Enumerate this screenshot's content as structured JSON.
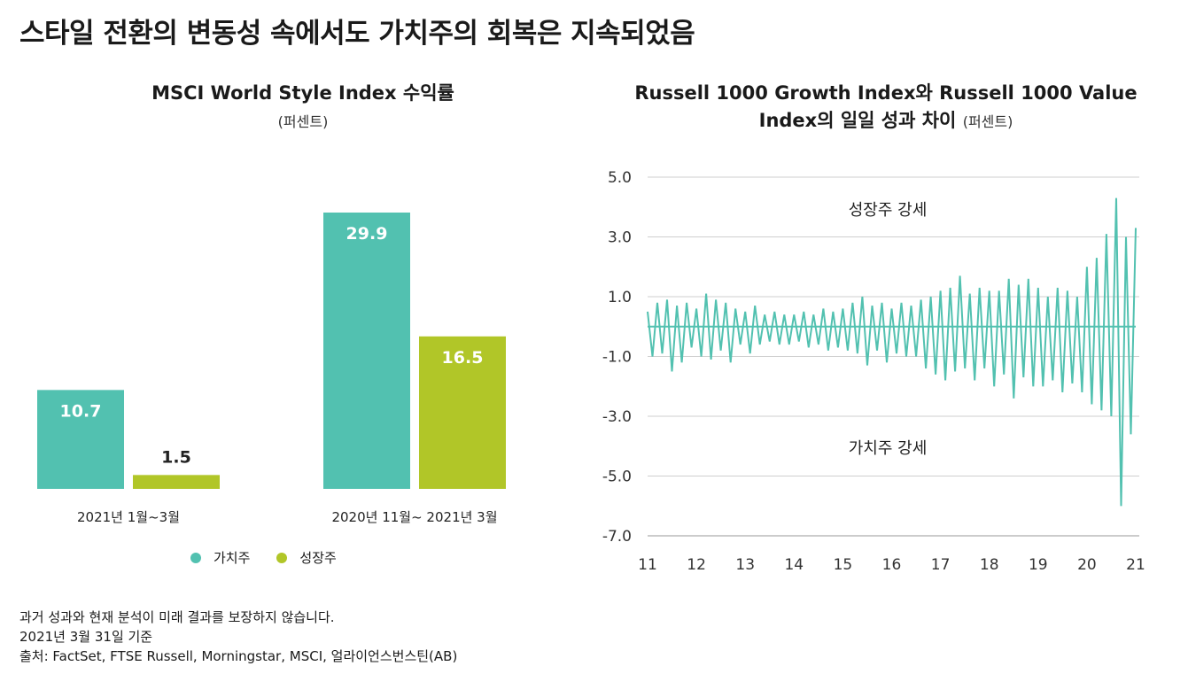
{
  "title": "스타일 전환의 변동성 속에서도 가치주의 회복은 지속되었음",
  "left_chart": {
    "title": "MSCI World Style Index 수익률",
    "unit": "(퍼센트)"
  },
  "right_chart": {
    "title_line1": "Russell 1000 Growth Index와 Russell 1000 Value",
    "title_line2": "Index의 일일 성과 차이",
    "unit": "(퍼센트)",
    "annotation_top": "성장주 강세",
    "annotation_bottom": "가치주 강세"
  },
  "legend": [
    {
      "label": "가치주",
      "color": "#52c1b0"
    },
    {
      "label": "성장주",
      "color": "#b1c628"
    }
  ],
  "footer": {
    "line1": "과거 성과와 현재 분석이 미래 결과를 보장하지 않습니다.",
    "line2": "2021년 3월 31일 기준",
    "line3": "출처: FactSet, FTSE Russell, Morningstar, MSCI, 얼라이언스번스틴(AB)"
  },
  "chart_data": [
    {
      "type": "bar",
      "title": "MSCI World Style Index 수익률",
      "categories": [
        "2021년 1월~3월",
        "2020년 11월~ 2021년 3월"
      ],
      "series": [
        {
          "name": "가치주",
          "values": [
            10.7,
            29.9
          ],
          "color": "#52c1b0"
        },
        {
          "name": "성장주",
          "values": [
            1.5,
            16.5
          ],
          "color": "#b1c628"
        }
      ],
      "value_labels": [
        [
          "10.7",
          "1.5"
        ],
        [
          "29.9",
          "16.5"
        ]
      ],
      "ylim": [
        0,
        32
      ],
      "grid": false,
      "legend": "bottom"
    },
    {
      "type": "line",
      "title": "Russell 1000 Growth Index와 Russell 1000 Value Index의 일일 성과 차이",
      "ylabel": "(퍼센트)",
      "ylim": [
        -7.0,
        5.0
      ],
      "yticks": [
        5.0,
        3.0,
        1.0,
        -1.0,
        -3.0,
        -5.0,
        -7.0
      ],
      "ytick_labels": [
        "5.0",
        "3.0",
        "1.0",
        "-1.0",
        "-3.0",
        "-5.0",
        "-7.0"
      ],
      "xlim": [
        11,
        21
      ],
      "xticks": [
        11,
        12,
        13,
        14,
        15,
        16,
        17,
        18,
        19,
        20,
        21
      ],
      "xtick_labels": [
        "11",
        "12",
        "13",
        "14",
        "15",
        "16",
        "17",
        "18",
        "19",
        "20",
        "21"
      ],
      "grid": true,
      "color": "#52c1b0",
      "x": [
        11.0,
        11.1,
        11.2,
        11.3,
        11.4,
        11.5,
        11.6,
        11.7,
        11.8,
        11.9,
        12.0,
        12.1,
        12.2,
        12.3,
        12.4,
        12.5,
        12.6,
        12.7,
        12.8,
        12.9,
        13.0,
        13.1,
        13.2,
        13.3,
        13.4,
        13.5,
        13.6,
        13.7,
        13.8,
        13.9,
        14.0,
        14.1,
        14.2,
        14.3,
        14.4,
        14.5,
        14.6,
        14.7,
        14.8,
        14.9,
        15.0,
        15.1,
        15.2,
        15.3,
        15.4,
        15.5,
        15.6,
        15.7,
        15.8,
        15.9,
        16.0,
        16.1,
        16.2,
        16.3,
        16.4,
        16.5,
        16.6,
        16.7,
        16.8,
        16.9,
        17.0,
        17.1,
        17.2,
        17.3,
        17.4,
        17.5,
        17.6,
        17.7,
        17.8,
        17.9,
        18.0,
        18.1,
        18.2,
        18.3,
        18.4,
        18.5,
        18.6,
        18.7,
        18.8,
        18.9,
        19.0,
        19.1,
        19.2,
        19.3,
        19.4,
        19.5,
        19.6,
        19.7,
        19.8,
        19.9,
        20.0,
        20.1,
        20.2,
        20.3,
        20.4,
        20.5,
        20.6,
        20.7,
        20.8,
        20.9,
        21.0
      ],
      "values": [
        0.5,
        -1.0,
        0.8,
        -0.9,
        0.9,
        -1.5,
        0.7,
        -1.2,
        0.8,
        -0.7,
        0.6,
        -1.0,
        1.1,
        -1.1,
        0.9,
        -0.8,
        0.8,
        -1.2,
        0.6,
        -0.6,
        0.5,
        -0.9,
        0.7,
        -0.6,
        0.4,
        -0.5,
        0.5,
        -0.6,
        0.4,
        -0.6,
        0.4,
        -0.5,
        0.5,
        -0.7,
        0.4,
        -0.6,
        0.6,
        -0.8,
        0.5,
        -0.7,
        0.6,
        -0.8,
        0.8,
        -0.9,
        1.0,
        -1.3,
        0.7,
        -0.8,
        0.8,
        -1.2,
        0.6,
        -0.9,
        0.8,
        -1.0,
        0.7,
        -1.0,
        0.9,
        -1.4,
        1.0,
        -1.6,
        1.2,
        -1.8,
        1.3,
        -1.5,
        1.7,
        -1.4,
        1.1,
        -1.8,
        1.3,
        -1.4,
        1.2,
        -2.0,
        1.2,
        -1.6,
        1.6,
        -2.4,
        1.4,
        -1.7,
        1.6,
        -2.0,
        1.3,
        -2.0,
        1.0,
        -1.8,
        1.3,
        -2.2,
        1.2,
        -1.9,
        1.0,
        -2.2,
        2.0,
        -2.6,
        2.3,
        -2.8,
        3.1,
        -3.0,
        4.3,
        -6.0,
        3.0,
        -3.6,
        3.3
      ]
    }
  ]
}
